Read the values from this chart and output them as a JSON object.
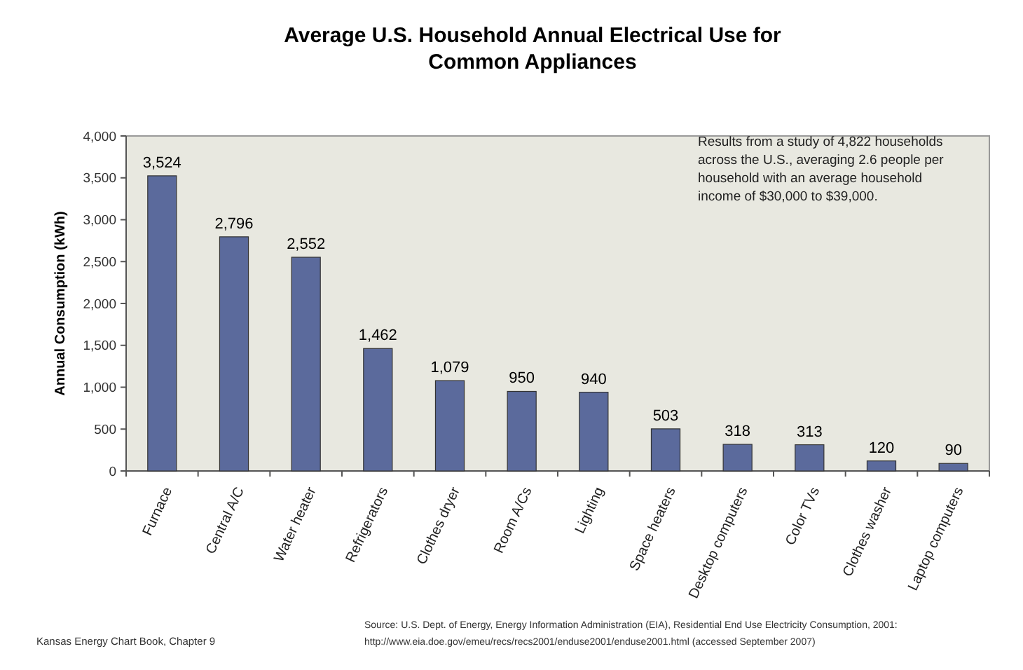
{
  "chart_data": {
    "type": "bar",
    "title": "Average U.S. Household Annual Electrical Use for Common Appliances",
    "ylabel": "Annual Consumption (kWh)",
    "categories": [
      "Furnace",
      "Central A/C",
      "Water heater",
      "Refrigerators",
      "Clothes dryer",
      "Room A/Cs",
      "Lighting",
      "Space heaters",
      "Desktop computers",
      "Color TVs",
      "Clothes washer",
      "Laptop computers"
    ],
    "values": [
      3524,
      2796,
      2552,
      1462,
      1079,
      950,
      940,
      503,
      318,
      313,
      120,
      90
    ],
    "color": "#5b6a9c",
    "value_labels": [
      "3,524",
      "2,796",
      "2,552",
      "1,462",
      "1,079",
      "950",
      "940",
      "503",
      "318",
      "313",
      "120",
      "90"
    ],
    "ylim": [
      0,
      4000
    ],
    "yticks": [
      {
        "value": 0,
        "label": "0"
      },
      {
        "value": 500,
        "label": "500"
      },
      {
        "value": 1000,
        "label": "1,000"
      },
      {
        "value": 1500,
        "label": "1,500"
      },
      {
        "value": 2000,
        "label": "2,000"
      },
      {
        "value": 2500,
        "label": "2,500"
      },
      {
        "value": 3000,
        "label": "3,000"
      },
      {
        "value": 3500,
        "label": "3,500"
      },
      {
        "value": 4000,
        "label": "4,000"
      }
    ],
    "grid": false,
    "annotations": [
      "Results from a study of 4,822 households across the U.S., averaging 2.6 people per household with an average household income of $30,000 to $39,000.",
      "Kansas Energy Chart Book, Chapter 9",
      "Source: U.S. Dept. of Energy, Energy Information Administration (EIA), Residential End Use Electricity Consumption, 2001: http://www.eia.doe.gov/emeu/recs/recs2001/enduse2001/enduse2001.html (accessed September 2007)"
    ]
  }
}
